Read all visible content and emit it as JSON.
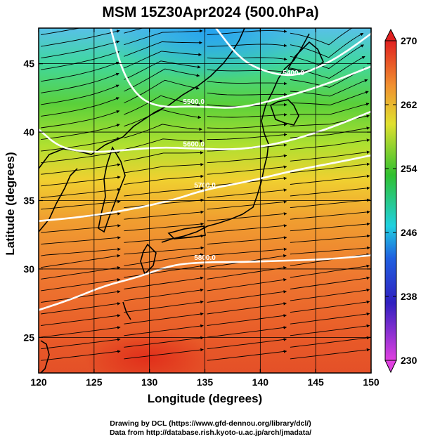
{
  "title": "MSM 15Z30Apr2024 (500.0hPa)",
  "xlabel": "Longitude (degrees)",
  "ylabel": "Latitude  (degrees)",
  "credits": {
    "line1": "Drawing by DCL (https://www.gfd-dennou.org/library/dcl/)",
    "line2": "Data from http://database.rish.kyoto-u.ac.jp/arch/jmadata/"
  },
  "chart_data": {
    "type": "heatmap",
    "title": "MSM 15Z30Apr2024 (500.0hPa)",
    "xlabel": "Longitude (degrees)",
    "ylabel": "Latitude  (degrees)",
    "xlim": [
      120,
      150
    ],
    "ylim": [
      22.4,
      47.6
    ],
    "x_ticks": [
      120,
      125,
      130,
      135,
      140,
      145,
      150
    ],
    "y_ticks": [
      25,
      30,
      35,
      40,
      45
    ],
    "colorbar": {
      "min": 230,
      "max": 270,
      "tick_labels": [
        230,
        238,
        246,
        254,
        262,
        270
      ],
      "colors": [
        "#e040e0",
        "#2030d0",
        "#20d0e0",
        "#30c030",
        "#f0e030",
        "#f08030",
        "#e02020"
      ]
    },
    "contours": [
      {
        "label": "5400.0",
        "points": [
          [
            136,
            47.6
          ],
          [
            138,
            45.5
          ],
          [
            140,
            44.5
          ],
          [
            143,
            44.0
          ],
          [
            146,
            45.0
          ],
          [
            148,
            46.0
          ],
          [
            150,
            47.2
          ]
        ]
      },
      {
        "label": "5500.0",
        "points": [
          [
            126.5,
            47.6
          ],
          [
            127.5,
            44.5
          ],
          [
            129,
            42.5
          ],
          [
            131,
            41.8
          ],
          [
            134,
            41.9
          ],
          [
            138,
            41.7
          ],
          [
            142,
            42.5
          ],
          [
            146,
            43.5
          ],
          [
            150,
            44.8
          ]
        ]
      },
      {
        "label": "5600.0",
        "points": [
          [
            120,
            40.2
          ],
          [
            122,
            38.8
          ],
          [
            125,
            38.5
          ],
          [
            128,
            38.7
          ],
          [
            131,
            38.9
          ],
          [
            134,
            38.8
          ],
          [
            138,
            38.7
          ],
          [
            142,
            39.2
          ],
          [
            146,
            40.2
          ],
          [
            150,
            41.5
          ]
        ]
      },
      {
        "label": "5700.0",
        "points": [
          [
            120,
            33.5
          ],
          [
            124,
            33.8
          ],
          [
            128,
            34.3
          ],
          [
            132,
            35.0
          ],
          [
            135,
            35.8
          ],
          [
            139,
            36.4
          ],
          [
            143,
            37.2
          ],
          [
            147,
            37.8
          ],
          [
            150,
            38.3
          ]
        ]
      },
      {
        "label": "5800.0",
        "points": [
          [
            120,
            27.0
          ],
          [
            123,
            27.8
          ],
          [
            126,
            28.8
          ],
          [
            129,
            29.4
          ],
          [
            132,
            30.3
          ],
          [
            135,
            30.5
          ],
          [
            138,
            30.5
          ],
          [
            142,
            30.6
          ],
          [
            146,
            30.7
          ],
          [
            150,
            31.0
          ]
        ]
      }
    ],
    "flow": "westerly, curving anticyclonically over the Sea of Japan and cyclonically near Hokkaido",
    "grid": true
  }
}
